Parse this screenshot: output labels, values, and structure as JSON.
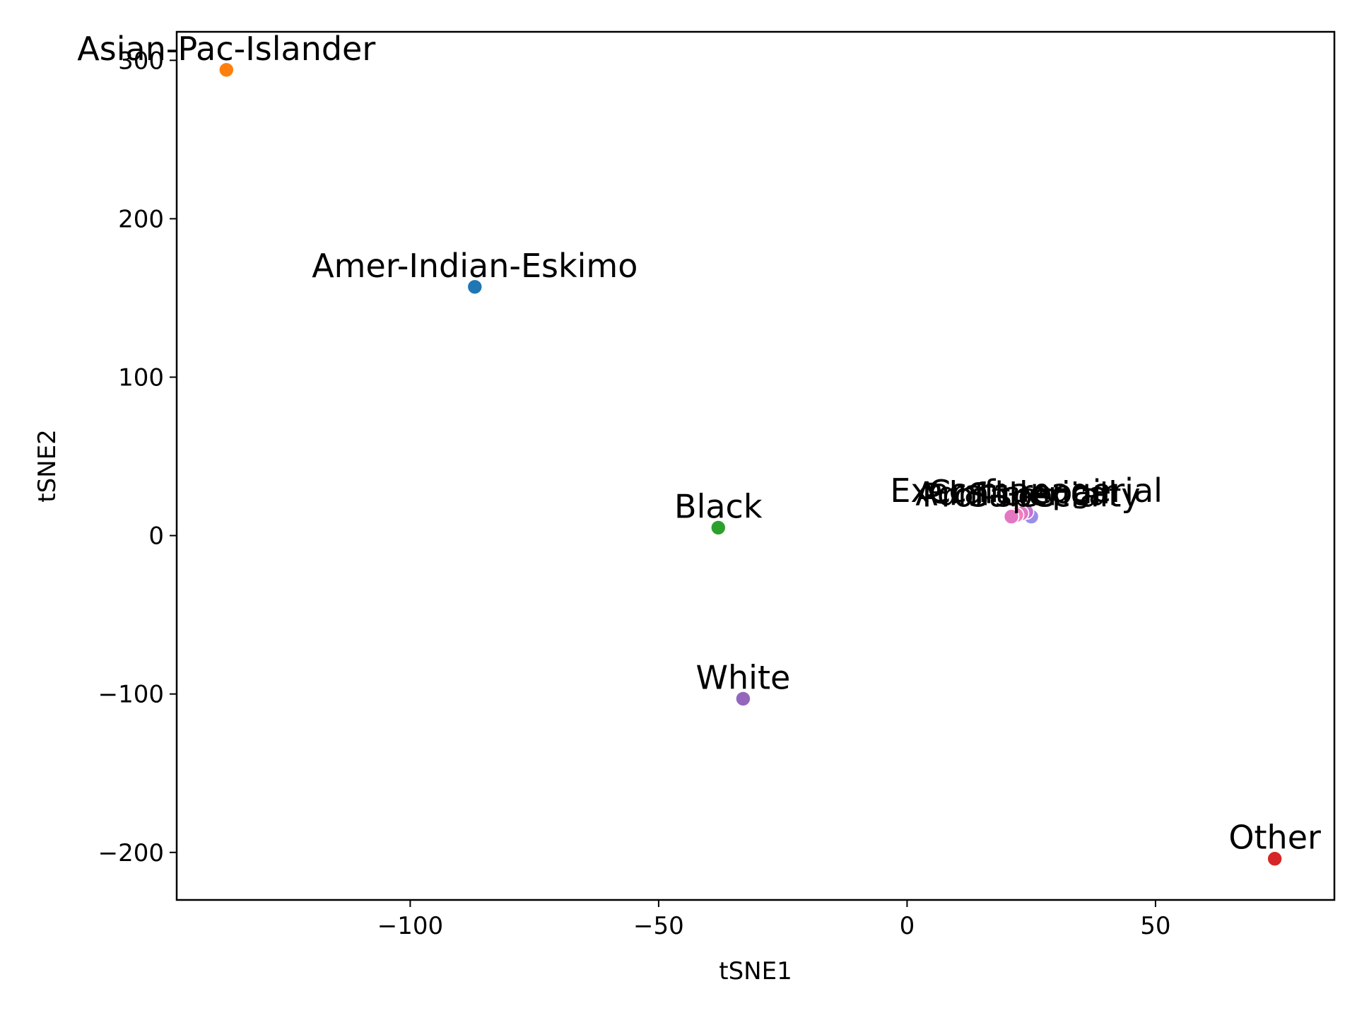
{
  "chart_data": {
    "type": "scatter",
    "title": "",
    "xlabel": "tSNE1",
    "ylabel": "tSNE2",
    "xlim": [
      -147,
      86
    ],
    "ylim": [
      -230,
      318
    ],
    "xticks": [
      -100,
      -50,
      0,
      50
    ],
    "yticks": [
      -200,
      -100,
      0,
      100,
      200,
      300
    ],
    "xtick_labels": [
      "−100",
      "−50",
      "0",
      "50"
    ],
    "ytick_labels": [
      "−200",
      "−100",
      "0",
      "100",
      "200",
      "300"
    ],
    "grid": false,
    "points": [
      {
        "label": "Asian-Pac-Islander",
        "x": -137,
        "y": 294,
        "color": "#ff7f0e"
      },
      {
        "label": "Amer-Indian-Eskimo",
        "x": -87,
        "y": 157,
        "color": "#1f77b4"
      },
      {
        "label": "Black",
        "x": -38,
        "y": 5,
        "color": "#2ca02c"
      },
      {
        "label": "White",
        "x": -33,
        "y": -103,
        "color": "#9467bd"
      },
      {
        "label": "Other",
        "x": 74,
        "y": -204,
        "color": "#d62728"
      },
      {
        "label": "Prof-specialty",
        "x": 25,
        "y": 12,
        "color": "#9a8ee8"
      },
      {
        "label": "Exec-managerial",
        "x": 24,
        "y": 15,
        "color": "#c56fd6"
      },
      {
        "label": "Craft-repair",
        "x": 23,
        "y": 14,
        "color": "#e377c2"
      },
      {
        "label": "Adm-clerical",
        "x": 22,
        "y": 13,
        "color": "#f07fbf"
      },
      {
        "label": "Sales",
        "x": 21,
        "y": 12,
        "color": "#e377c2"
      }
    ]
  }
}
